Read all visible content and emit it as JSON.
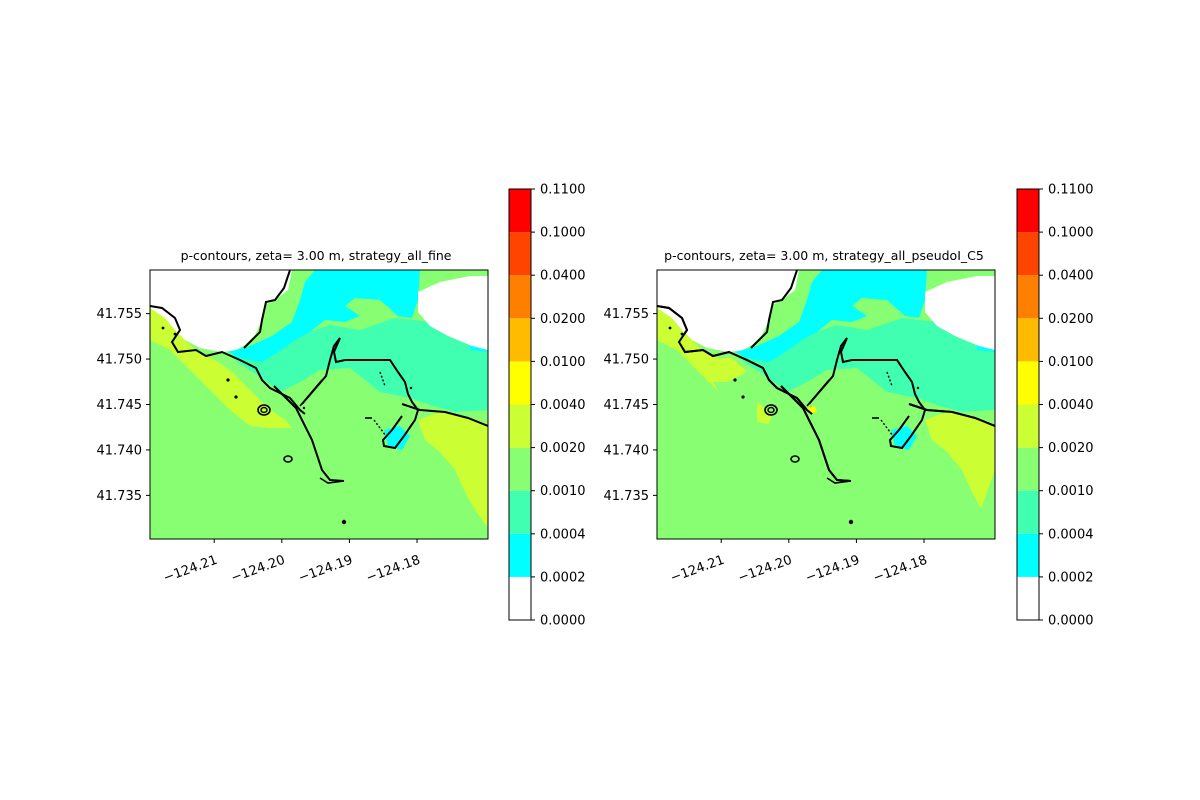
{
  "chart_data": [
    {
      "type": "contour",
      "title": "p-contours, zeta= 3.00 m, strategy_all_fine",
      "xlim": [
        -124.2195,
        -124.1695
      ],
      "ylim": [
        41.7302,
        41.7598
      ],
      "x_ticks": [
        {
          "value": -124.21,
          "label": "−124.21"
        },
        {
          "value": -124.2,
          "label": "−124.20"
        },
        {
          "value": -124.19,
          "label": "−124.19"
        },
        {
          "value": -124.18,
          "label": "−124.18"
        }
      ],
      "y_ticks": [
        {
          "value": 41.755,
          "label": "41.755"
        },
        {
          "value": 41.75,
          "label": "41.750"
        },
        {
          "value": 41.745,
          "label": "41.745"
        },
        {
          "value": 41.74,
          "label": "41.740"
        },
        {
          "value": 41.735,
          "label": "41.735"
        }
      ],
      "levels": [
        "0.0000",
        "0.0002",
        "0.0004",
        "0.0010",
        "0.0020",
        "0.0040",
        "0.0100",
        "0.0200",
        "0.0400",
        "0.1000",
        "0.1100"
      ],
      "level_colors": [
        "#ffffff",
        "#00ffff",
        "#40ffb0",
        "#88ff72",
        "#ccff33",
        "#ffff00",
        "#ffbb00",
        "#ff7f00",
        "#ff4400",
        "#ff0000"
      ],
      "regions": [
        {
          "band": "0.0010-0.0020",
          "color": "#88ff72",
          "note": "background, most of domain"
        },
        {
          "band": "0.0000-0.0002",
          "color": "#ffffff",
          "note": "upper left and upper right"
        },
        {
          "band": "0.0002-0.0004",
          "color": "#00ffff",
          "note": "upper bay channel"
        },
        {
          "band": "0.0004-0.0010",
          "color": "#40ffb0",
          "note": "mid-upper bay"
        },
        {
          "band": "0.0020-0.0040",
          "color": "#ccff33",
          "note": "left coastal strip and right wedge"
        }
      ]
    },
    {
      "type": "contour",
      "title": "p-contours, zeta= 3.00 m, strategy_all_pseudoI_C5",
      "xlim": [
        -124.2195,
        -124.1695
      ],
      "ylim": [
        41.7302,
        41.7598
      ],
      "x_ticks": [
        {
          "value": -124.21,
          "label": "−124.21"
        },
        {
          "value": -124.2,
          "label": "−124.20"
        },
        {
          "value": -124.19,
          "label": "−124.19"
        },
        {
          "value": -124.18,
          "label": "−124.18"
        }
      ],
      "y_ticks": [
        {
          "value": 41.755,
          "label": "41.755"
        },
        {
          "value": 41.75,
          "label": "41.750"
        },
        {
          "value": 41.745,
          "label": "41.745"
        },
        {
          "value": 41.74,
          "label": "41.740"
        },
        {
          "value": 41.735,
          "label": "41.735"
        }
      ],
      "levels": [
        "0.0000",
        "0.0002",
        "0.0004",
        "0.0010",
        "0.0020",
        "0.0040",
        "0.0100",
        "0.0200",
        "0.0400",
        "0.1000",
        "0.1100"
      ],
      "level_colors": [
        "#ffffff",
        "#00ffff",
        "#40ffb0",
        "#88ff72",
        "#ccff33",
        "#ffff00",
        "#ffbb00",
        "#ff7f00",
        "#ff4400",
        "#ff0000"
      ],
      "regions": [
        {
          "band": "0.0010-0.0020",
          "color": "#88ff72",
          "note": "background, most of domain"
        },
        {
          "band": "0.0000-0.0002",
          "color": "#ffffff",
          "note": "upper left and upper right"
        },
        {
          "band": "0.0002-0.0004",
          "color": "#00ffff",
          "note": "upper bay channel"
        },
        {
          "band": "0.0004-0.0010",
          "color": "#40ffb0",
          "note": "mid-upper bay"
        },
        {
          "band": "0.0020-0.0040",
          "color": "#ccff33",
          "note": "small left coastal strip and right wedge"
        }
      ]
    }
  ]
}
